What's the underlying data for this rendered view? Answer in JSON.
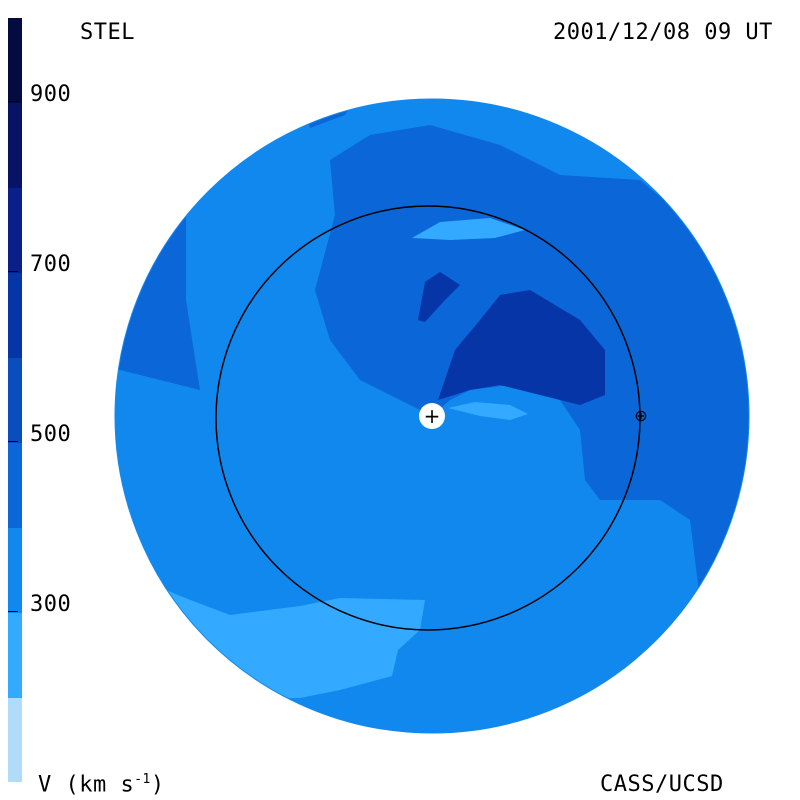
{
  "header": {
    "instrument": "STEL",
    "timestamp": "2001/12/08 09 UT"
  },
  "footer": {
    "quantity_label": "V (km s",
    "unit_exponent": "-1",
    "quantity_label_close": ")",
    "credit": "CASS/UCSD"
  },
  "colorbar": {
    "ticks": [
      "900",
      "700",
      "500",
      "300"
    ],
    "colors": [
      "#b0dcfa",
      "#33aaff",
      "#1188ee",
      "#0b66d8",
      "#084fbd",
      "#0535a6",
      "#0a1f8a",
      "#061366",
      "#040b40"
    ]
  },
  "map": {
    "colors": {
      "lightest": "#33aaff",
      "light": "#1188ee",
      "mid": "#0b66d8",
      "dark": "#084fbd",
      "darkest": "#0535a6"
    },
    "earth_marker": "+",
    "sun_marker": "⊕"
  }
}
